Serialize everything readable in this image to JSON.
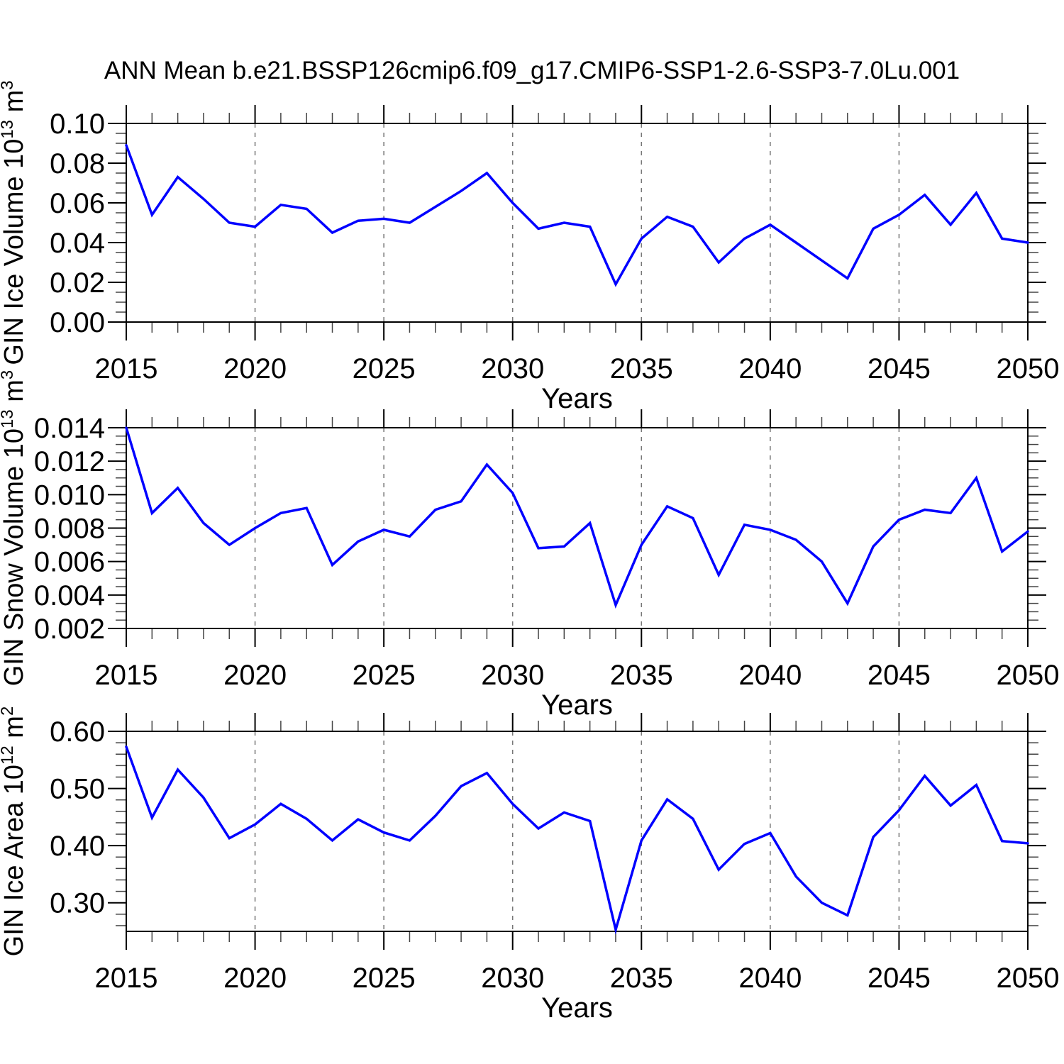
{
  "title": "ANN Mean b.e21.BSSP126cmip6.f09_g17.CMIP6-SSP1-2.6-SSP3-7.0Lu.001",
  "colors": {
    "line": "#0000ff",
    "axis": "#000000",
    "minor_tick": "#444444",
    "grid": "#777777",
    "text": "#000000",
    "background": "#ffffff"
  },
  "x_axis": {
    "label": "Years",
    "min": 2015,
    "max": 2050,
    "major_ticks": [
      2015,
      2020,
      2025,
      2030,
      2035,
      2040,
      2045,
      2050
    ],
    "minor_step": 1,
    "grid_lines": [
      2020,
      2025,
      2030,
      2035,
      2040,
      2045
    ]
  },
  "chart_data": [
    {
      "type": "line",
      "panel_id": "gin-ice-volume-panel",
      "ylabel": "GIN Ice Volume 10¹³ m³",
      "ylabel_parts": [
        {
          "t": "GIN Ice Volume 10"
        },
        {
          "t": "13",
          "sup": true
        },
        {
          "t": " m"
        },
        {
          "t": "3",
          "sup": true
        }
      ],
      "xlabel": "Years",
      "ylim": [
        0.0,
        0.1
      ],
      "yticks": [
        0.0,
        0.02,
        0.04,
        0.06,
        0.08,
        0.1
      ],
      "ytick_labels": [
        "0.00",
        "0.02",
        "0.04",
        "0.06",
        "0.08",
        "0.10"
      ],
      "y_minor_step": 0.005,
      "x": [
        2015,
        2016,
        2017,
        2018,
        2019,
        2020,
        2021,
        2022,
        2023,
        2024,
        2025,
        2026,
        2027,
        2028,
        2029,
        2030,
        2031,
        2032,
        2033,
        2034,
        2035,
        2036,
        2037,
        2038,
        2039,
        2040,
        2041,
        2042,
        2043,
        2044,
        2045,
        2046,
        2047,
        2048,
        2049,
        2050
      ],
      "values": [
        0.089,
        0.054,
        0.073,
        0.062,
        0.05,
        0.048,
        0.059,
        0.057,
        0.045,
        0.051,
        0.052,
        0.05,
        0.058,
        0.066,
        0.075,
        0.06,
        0.047,
        0.05,
        0.048,
        0.019,
        0.042,
        0.053,
        0.048,
        0.03,
        0.042,
        0.049,
        0.04,
        0.031,
        0.022,
        0.047,
        0.054,
        0.064,
        0.049,
        0.065,
        0.042,
        0.04
      ]
    },
    {
      "type": "line",
      "panel_id": "gin-snow-volume-panel",
      "ylabel": "GIN Snow Volume 10¹³ m³",
      "ylabel_parts": [
        {
          "t": "GIN Snow Volume 10"
        },
        {
          "t": "13",
          "sup": true
        },
        {
          "t": " m"
        },
        {
          "t": "3",
          "sup": true
        }
      ],
      "xlabel": "Years",
      "ylim": [
        0.002,
        0.014
      ],
      "yticks": [
        0.002,
        0.004,
        0.006,
        0.008,
        0.01,
        0.012,
        0.014
      ],
      "ytick_labels": [
        "0.002",
        "0.004",
        "0.006",
        "0.008",
        "0.010",
        "0.012",
        "0.014"
      ],
      "y_minor_step": 0.0005,
      "x": [
        2015,
        2016,
        2017,
        2018,
        2019,
        2020,
        2021,
        2022,
        2023,
        2024,
        2025,
        2026,
        2027,
        2028,
        2029,
        2030,
        2031,
        2032,
        2033,
        2034,
        2035,
        2036,
        2037,
        2038,
        2039,
        2040,
        2041,
        2042,
        2043,
        2044,
        2045,
        2046,
        2047,
        2048,
        2049,
        2050
      ],
      "values": [
        0.014,
        0.0089,
        0.0104,
        0.0083,
        0.007,
        0.008,
        0.0089,
        0.0092,
        0.0058,
        0.0072,
        0.0079,
        0.0075,
        0.0091,
        0.0096,
        0.0118,
        0.0101,
        0.0068,
        0.0069,
        0.0083,
        0.0034,
        0.007,
        0.0093,
        0.0086,
        0.0052,
        0.0082,
        0.0079,
        0.0073,
        0.006,
        0.0035,
        0.0069,
        0.0085,
        0.0091,
        0.0089,
        0.011,
        0.0066,
        0.0078
      ]
    },
    {
      "type": "line",
      "panel_id": "gin-ice-area-panel",
      "ylabel": "GIN Ice Area 10¹² m²",
      "ylabel_parts": [
        {
          "t": "GIN Ice Area 10"
        },
        {
          "t": "12",
          "sup": true
        },
        {
          "t": " m"
        },
        {
          "t": "2",
          "sup": true
        }
      ],
      "xlabel": "Years",
      "ylim": [
        0.25,
        0.6
      ],
      "yticks": [
        0.3,
        0.4,
        0.5,
        0.6
      ],
      "ytick_labels": [
        "0.30",
        "0.40",
        "0.50",
        "0.60"
      ],
      "y_minor_step": 0.02,
      "x": [
        2015,
        2016,
        2017,
        2018,
        2019,
        2020,
        2021,
        2022,
        2023,
        2024,
        2025,
        2026,
        2027,
        2028,
        2029,
        2030,
        2031,
        2032,
        2033,
        2034,
        2035,
        2036,
        2037,
        2038,
        2039,
        2040,
        2041,
        2042,
        2043,
        2044,
        2045,
        2046,
        2047,
        2048,
        2049,
        2050
      ],
      "values": [
        0.573,
        0.449,
        0.533,
        0.484,
        0.413,
        0.437,
        0.473,
        0.447,
        0.409,
        0.446,
        0.423,
        0.409,
        0.452,
        0.504,
        0.527,
        0.473,
        0.43,
        0.458,
        0.443,
        0.253,
        0.409,
        0.481,
        0.447,
        0.358,
        0.403,
        0.422,
        0.346,
        0.3,
        0.278,
        0.415,
        0.462,
        0.522,
        0.47,
        0.506,
        0.408,
        0.404
      ]
    }
  ]
}
